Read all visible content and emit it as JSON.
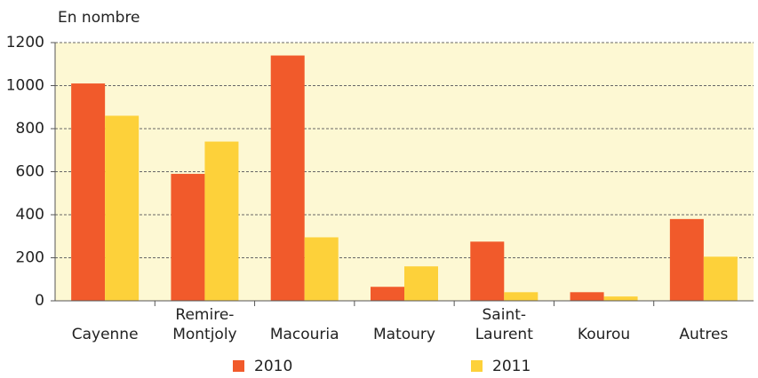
{
  "chart_data": {
    "type": "bar",
    "y_axis_label": "En nombre",
    "categories": [
      "Cayenne",
      "Remire-\nMontjoly",
      "Macouria",
      "Matoury",
      "Saint-\nLaurent",
      "Kourou",
      "Autres"
    ],
    "series": [
      {
        "name": "2010",
        "color": "#f15a2b",
        "values": [
          1010,
          590,
          1140,
          65,
          275,
          40,
          380
        ]
      },
      {
        "name": "2011",
        "color": "#fdd13a",
        "values": [
          860,
          740,
          295,
          160,
          40,
          20,
          205
        ]
      }
    ],
    "ylim": [
      0,
      1200
    ],
    "yticks": [
      0,
      200,
      400,
      600,
      800,
      1000,
      1200
    ],
    "grid": true
  }
}
